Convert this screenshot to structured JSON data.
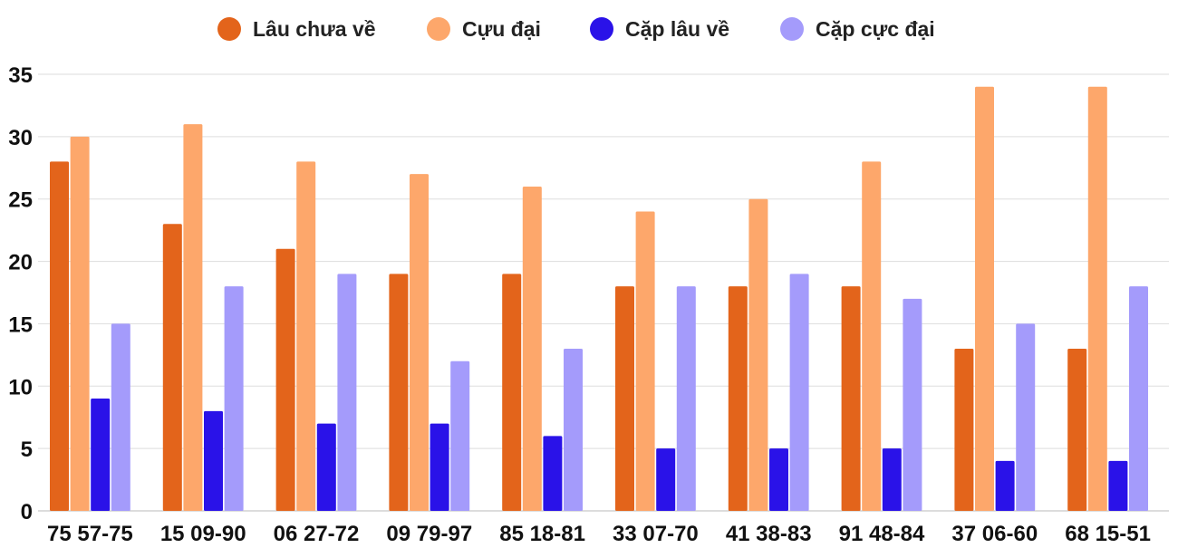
{
  "chart_data": {
    "type": "bar",
    "title": "",
    "xlabel": "",
    "ylabel": "",
    "ylim": [
      0,
      35
    ],
    "yticks": [
      0,
      5,
      10,
      15,
      20,
      25,
      30,
      35
    ],
    "grid": true,
    "legend_position": "top-center",
    "categories": [
      "75 57-75",
      "15 09-90",
      "06 27-72",
      "09 79-97",
      "85 18-81",
      "33 07-70",
      "41 38-83",
      "91 48-84",
      "37 06-60",
      "68 15-51"
    ],
    "series": [
      {
        "name": "Lâu chưa về",
        "color": "#e3641b",
        "values": [
          28,
          23,
          21,
          19,
          19,
          18,
          18,
          18,
          13,
          13
        ]
      },
      {
        "name": "Cựu đại",
        "color": "#fda76b",
        "values": [
          30,
          31,
          28,
          27,
          26,
          24,
          25,
          28,
          34,
          34
        ]
      },
      {
        "name": "Cặp lâu về",
        "color": "#2a12e8",
        "values": [
          9,
          8,
          7,
          7,
          6,
          5,
          5,
          5,
          4,
          4
        ]
      },
      {
        "name": "Cặp cực đại",
        "color": "#a49bfb",
        "values": [
          15,
          18,
          19,
          12,
          13,
          18,
          19,
          17,
          15,
          18
        ]
      }
    ]
  }
}
